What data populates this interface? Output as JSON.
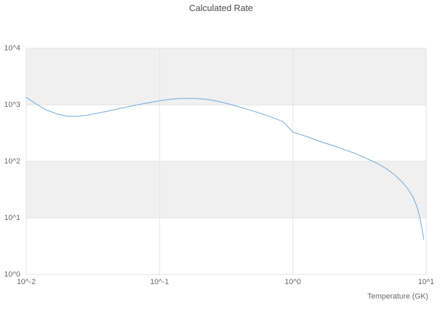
{
  "title": "Calculated Rate",
  "chart_data": {
    "type": "line",
    "title": "Calculated Rate",
    "xlabel": "Temperature (GK)",
    "ylabel": "",
    "x_scale": "log",
    "y_scale": "log",
    "xlim": [
      0.01,
      10
    ],
    "ylim": [
      1,
      10000
    ],
    "x_tick_labels": [
      "10^-2",
      "10^-1",
      "10^0",
      "10^1"
    ],
    "x_tick_values": [
      0.01,
      0.1,
      1,
      10
    ],
    "y_tick_labels": [
      "10^4",
      "10^3",
      "10^2",
      "10^1",
      "10^0"
    ],
    "y_tick_values": [
      10000,
      1000,
      100,
      10,
      1
    ],
    "legend": "none",
    "grid": "vertical-major-with-alternating-horizontal-bands",
    "line_color": "#6CA6D9",
    "band_color": "#f0f0f0",
    "grid_color": "#e2e2e2",
    "series": [
      {
        "name": "calculated-rate",
        "x": [
          0.01,
          0.012,
          0.014,
          0.017,
          0.02,
          0.024,
          0.028,
          0.035,
          0.045,
          0.055,
          0.07,
          0.085,
          0.1,
          0.12,
          0.14,
          0.16,
          0.18,
          0.2,
          0.23,
          0.26,
          0.3,
          0.35,
          0.4,
          0.5,
          0.6,
          0.7,
          0.85,
          1.0,
          1.3,
          1.6,
          2.0,
          2.5,
          3.0,
          3.6,
          4.3,
          5.0,
          5.8,
          6.5,
          7.2,
          8.0,
          8.6,
          9.0,
          9.3,
          9.6
        ],
        "y": [
          1350,
          1020,
          820,
          690,
          635,
          625,
          650,
          720,
          810,
          900,
          1010,
          1100,
          1180,
          1250,
          1290,
          1300,
          1295,
          1280,
          1240,
          1180,
          1100,
          1000,
          910,
          780,
          680,
          600,
          500,
          330,
          270,
          225,
          190,
          158,
          135,
          112,
          92,
          75,
          58,
          45,
          34,
          23,
          15,
          10,
          6.5,
          4.2
        ]
      }
    ]
  }
}
